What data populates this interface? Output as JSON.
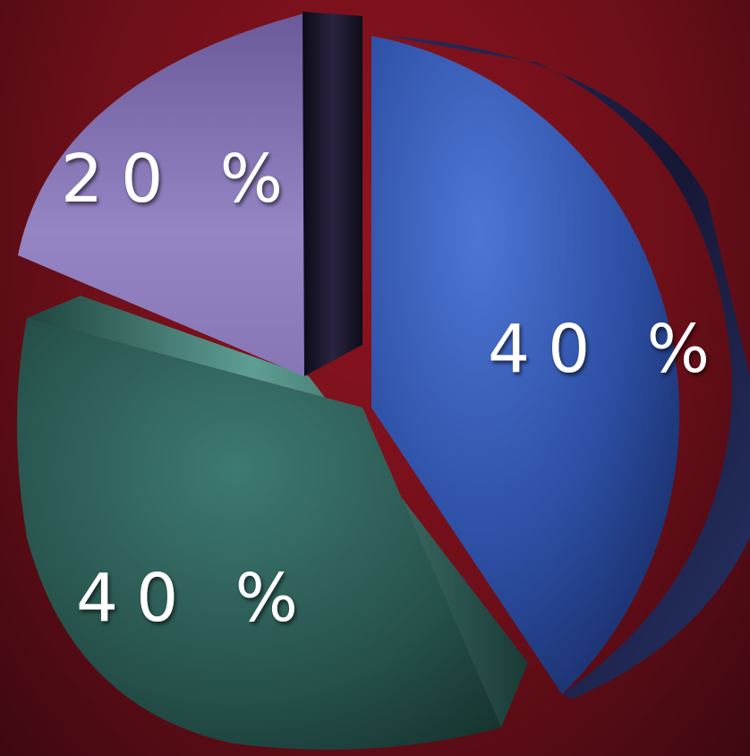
{
  "chart_data": {
    "type": "pie",
    "title": "",
    "slices": [
      {
        "label": "40 %",
        "value": 40,
        "color": "#2e4fa6"
      },
      {
        "label": "40 %",
        "value": 40,
        "color": "#2c5e58"
      },
      {
        "label": "20 %",
        "value": 20,
        "color": "#8a78b8"
      }
    ],
    "style": "3d-exploded",
    "legend": "none",
    "background": "#7a111c"
  }
}
